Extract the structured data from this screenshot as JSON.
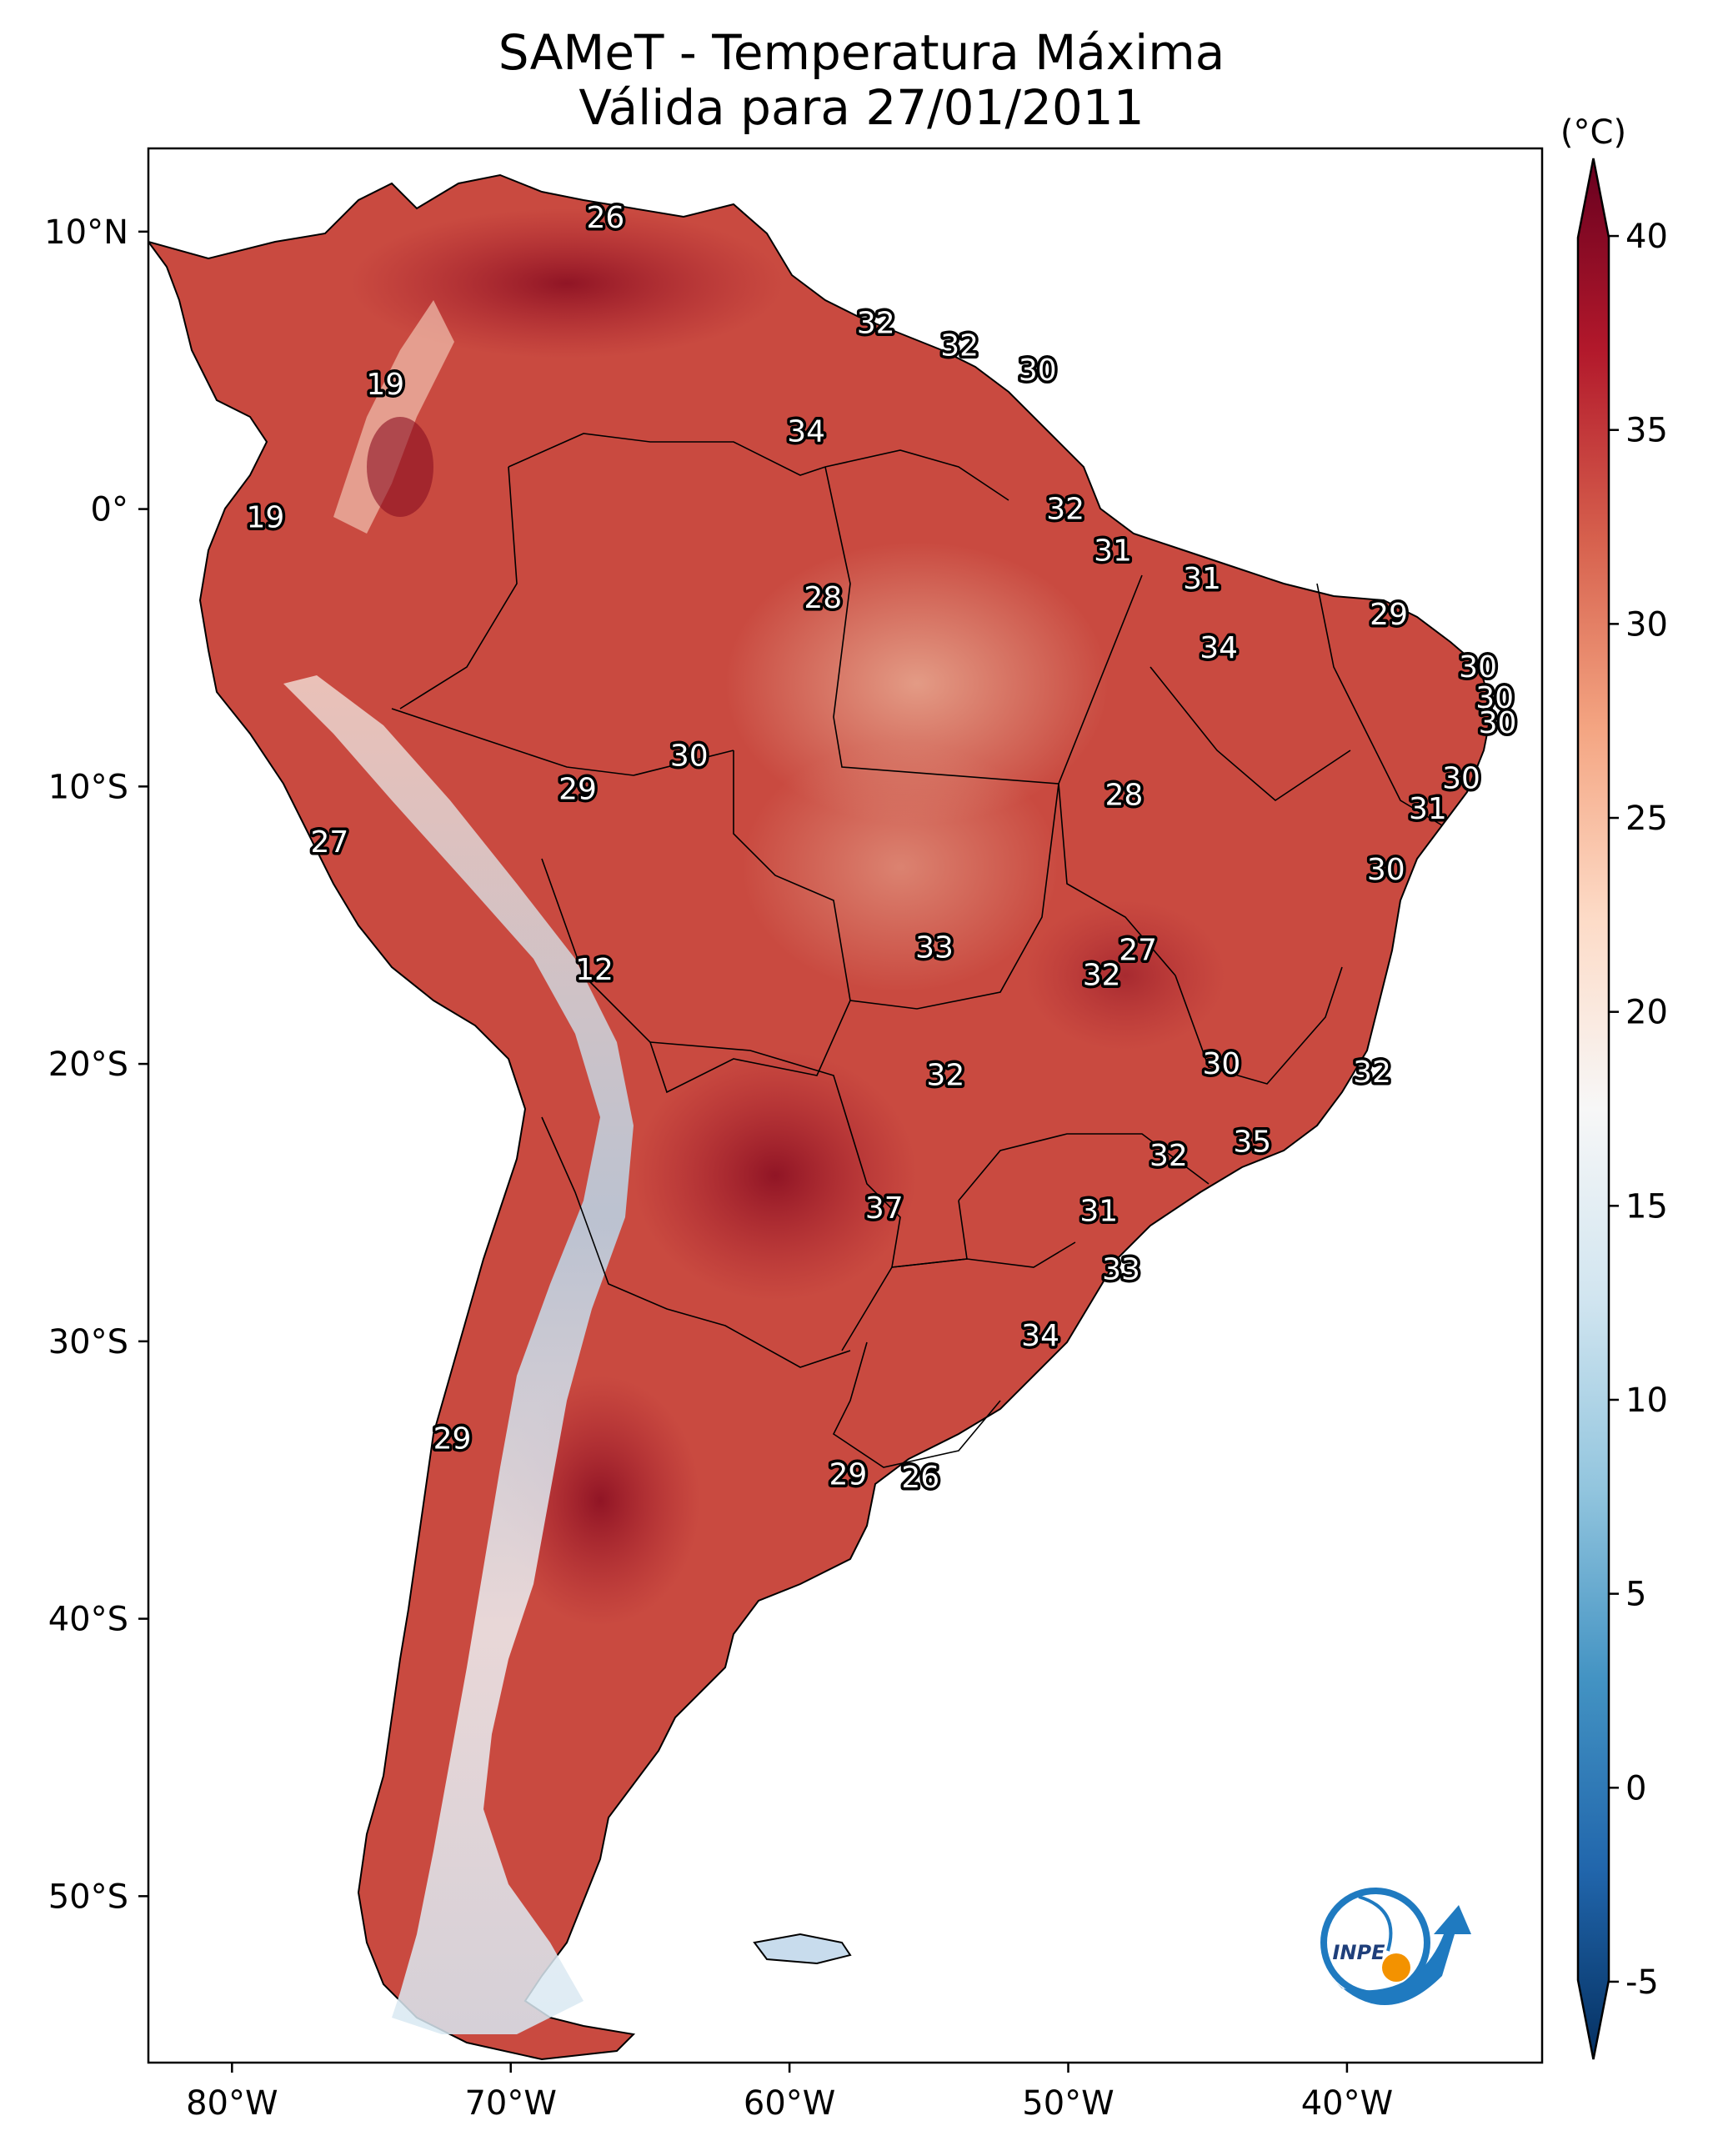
{
  "title": {
    "line1": "SAMeT - Temperatura Máxima",
    "line2": "Válida para 27/01/2011"
  },
  "map": {
    "lon_range": [
      -83,
      -33
    ],
    "lat_range": [
      -56,
      13
    ],
    "lon_ticks": [
      {
        "value": -80,
        "label": "80°W"
      },
      {
        "value": -70,
        "label": "70°W"
      },
      {
        "value": -60,
        "label": "60°W"
      },
      {
        "value": -50,
        "label": "50°W"
      },
      {
        "value": -40,
        "label": "40°W"
      }
    ],
    "lat_ticks": [
      {
        "value": 10,
        "label": "10°N"
      },
      {
        "value": 0,
        "label": "0°"
      },
      {
        "value": -10,
        "label": "10°S"
      },
      {
        "value": -20,
        "label": "20°S"
      },
      {
        "value": -30,
        "label": "30°S"
      },
      {
        "value": -40,
        "label": "40°S"
      },
      {
        "value": -50,
        "label": "50°S"
      }
    ],
    "temperature_labels": [
      {
        "lon": -66.6,
        "lat": 10.5,
        "value": "26"
      },
      {
        "lon": -74.5,
        "lat": 4.5,
        "value": "19"
      },
      {
        "lon": -78.8,
        "lat": -0.3,
        "value": "19"
      },
      {
        "lon": -56.9,
        "lat": 6.7,
        "value": "32"
      },
      {
        "lon": -53.9,
        "lat": 5.9,
        "value": "32"
      },
      {
        "lon": -51.1,
        "lat": 5.0,
        "value": "30"
      },
      {
        "lon": -59.4,
        "lat": 2.8,
        "value": "34"
      },
      {
        "lon": -50.1,
        "lat": 0.0,
        "value": "32"
      },
      {
        "lon": -48.4,
        "lat": -1.5,
        "value": "31"
      },
      {
        "lon": -45.2,
        "lat": -2.5,
        "value": "31"
      },
      {
        "lon": -38.5,
        "lat": -3.8,
        "value": "29"
      },
      {
        "lon": -58.8,
        "lat": -3.2,
        "value": "28"
      },
      {
        "lon": -44.6,
        "lat": -5.0,
        "value": "34"
      },
      {
        "lon": -35.3,
        "lat": -5.7,
        "value": "30"
      },
      {
        "lon": -34.7,
        "lat": -6.8,
        "value": "30"
      },
      {
        "lon": -34.6,
        "lat": -7.7,
        "value": "30"
      },
      {
        "lon": -63.6,
        "lat": -8.9,
        "value": "30"
      },
      {
        "lon": -67.6,
        "lat": -10.1,
        "value": "29"
      },
      {
        "lon": -48.0,
        "lat": -10.3,
        "value": "28"
      },
      {
        "lon": -35.9,
        "lat": -9.7,
        "value": "30"
      },
      {
        "lon": -37.1,
        "lat": -10.8,
        "value": "31"
      },
      {
        "lon": -76.5,
        "lat": -12.0,
        "value": "27"
      },
      {
        "lon": -38.6,
        "lat": -13.0,
        "value": "30"
      },
      {
        "lon": -54.8,
        "lat": -15.8,
        "value": "33"
      },
      {
        "lon": -47.5,
        "lat": -15.9,
        "value": "27"
      },
      {
        "lon": -48.8,
        "lat": -16.8,
        "value": "32"
      },
      {
        "lon": -67.0,
        "lat": -16.6,
        "value": "12"
      },
      {
        "lon": -44.5,
        "lat": -20.0,
        "value": "30"
      },
      {
        "lon": -39.1,
        "lat": -20.3,
        "value": "32"
      },
      {
        "lon": -54.4,
        "lat": -20.4,
        "value": "32"
      },
      {
        "lon": -43.4,
        "lat": -22.8,
        "value": "35"
      },
      {
        "lon": -46.4,
        "lat": -23.3,
        "value": "32"
      },
      {
        "lon": -56.6,
        "lat": -25.2,
        "value": "37"
      },
      {
        "lon": -48.9,
        "lat": -25.3,
        "value": "31"
      },
      {
        "lon": -48.1,
        "lat": -27.4,
        "value": "33"
      },
      {
        "lon": -51.0,
        "lat": -29.8,
        "value": "34"
      },
      {
        "lon": -72.1,
        "lat": -33.5,
        "value": "29"
      },
      {
        "lon": -57.9,
        "lat": -34.8,
        "value": "29"
      },
      {
        "lon": -55.3,
        "lat": -34.9,
        "value": "26"
      }
    ]
  },
  "colorbar": {
    "unit": "(°C)",
    "min": -7,
    "max": 42,
    "ticks": [
      {
        "value": 40,
        "label": "40"
      },
      {
        "value": 35,
        "label": "35"
      },
      {
        "value": 30,
        "label": "30"
      },
      {
        "value": 25,
        "label": "25"
      },
      {
        "value": 20,
        "label": "20"
      },
      {
        "value": 15,
        "label": "15"
      },
      {
        "value": 10,
        "label": "10"
      },
      {
        "value": 5,
        "label": "5"
      },
      {
        "value": 0,
        "label": "0"
      },
      {
        "value": -5,
        "label": "-5"
      }
    ],
    "colors": [
      "#053061",
      "#2166ac",
      "#4393c3",
      "#92c5de",
      "#d1e5f0",
      "#f7f7f7",
      "#fddbc7",
      "#f4a582",
      "#d6604d",
      "#b2182b",
      "#67001f"
    ]
  },
  "logo": {
    "text": "INPE",
    "ring_color": "#1f7ac0",
    "dot_color": "#f39200"
  }
}
